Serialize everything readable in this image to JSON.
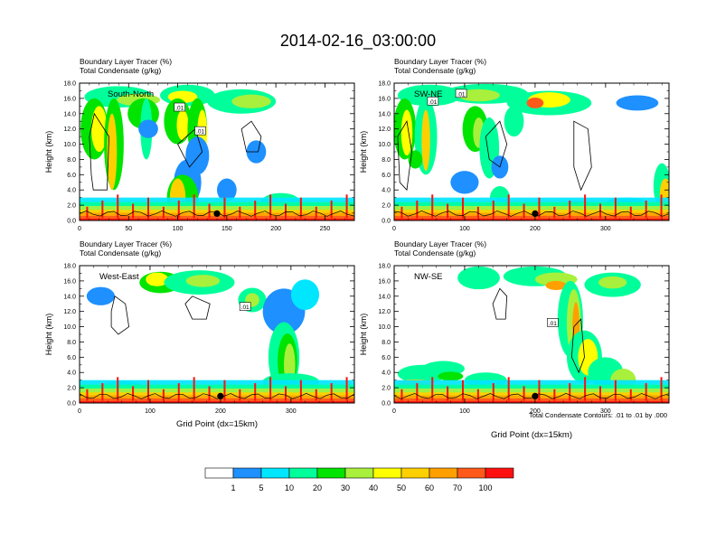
{
  "title": "2014-02-16_03:00:00",
  "colorbar": {
    "colors": [
      "#ffffff",
      "#1e90ff",
      "#00e6ff",
      "#00ff9a",
      "#00e400",
      "#a8f03c",
      "#ffff00",
      "#ffd000",
      "#ffa000",
      "#ff5a1a",
      "#ff1010"
    ],
    "labels": [
      "1",
      "5",
      "10",
      "20",
      "30",
      "40",
      "50",
      "60",
      "70",
      "100"
    ]
  },
  "contour_note": "Total Condensate Contours: .01 to .01 by .000",
  "chart_data": [
    {
      "type": "heatmap",
      "name": "south-north",
      "subtitle_1": "Boundary Layer Tracer   (%)",
      "subtitle_2": "Total Condensate   (g/kg)",
      "panel_label": "South-North",
      "ylabel": "Height (km)",
      "xlabel": "",
      "ylim": [
        0,
        18
      ],
      "xlim": [
        0,
        280
      ],
      "x_ticks": [
        "0",
        "50",
        "100",
        "150",
        "200",
        "250"
      ],
      "y_ticks": [
        "0.0",
        "2.0",
        "4.0",
        "6.0",
        "8.0",
        "10.0",
        "12.0",
        "14.0",
        "16.0",
        "18.0"
      ],
      "contour_labels": [
        ".01",
        ".01"
      ],
      "marker_x": 140
    },
    {
      "type": "heatmap",
      "name": "sw-ne",
      "subtitle_1": "Boundary Layer Tracer   (%)",
      "subtitle_2": "Total Condensate   (g/kg)",
      "panel_label": "SW-NE",
      "ylabel": "Height (km)",
      "xlabel": "",
      "ylim": [
        0,
        18
      ],
      "xlim": [
        0,
        390
      ],
      "x_ticks": [
        "0",
        "100",
        "200",
        "300"
      ],
      "y_ticks": [
        "0.0",
        "2.0",
        "4.0",
        "6.0",
        "8.0",
        "10.0",
        "12.0",
        "14.0",
        "16.0",
        "18.0"
      ],
      "contour_labels": [
        ".01",
        ".01"
      ],
      "marker_x": 200
    },
    {
      "type": "heatmap",
      "name": "west-east",
      "subtitle_1": "Boundary Layer Tracer   (%)",
      "subtitle_2": "Total Condensate   (g/kg)",
      "panel_label": "West-East",
      "ylabel": "Height (km)",
      "xlabel": "Grid Point (dx=15km)",
      "ylim": [
        0,
        18
      ],
      "xlim": [
        0,
        390
      ],
      "x_ticks": [
        "0",
        "100",
        "200",
        "300"
      ],
      "y_ticks": [
        "0.0",
        "2.0",
        "4.0",
        "6.0",
        "8.0",
        "10.0",
        "12.0",
        "14.0",
        "16.0",
        "18.0"
      ],
      "contour_labels": [
        ".01"
      ],
      "marker_x": 200
    },
    {
      "type": "heatmap",
      "name": "nw-se",
      "subtitle_1": "Boundary Layer Tracer   (%)",
      "subtitle_2": "Total Condensate   (g/kg)",
      "panel_label": "NW-SE",
      "ylabel": "Height (km)",
      "xlabel": "Grid Point (dx=15km)",
      "ylim": [
        0,
        18
      ],
      "xlim": [
        0,
        390
      ],
      "x_ticks": [
        "0",
        "100",
        "200",
        "300"
      ],
      "y_ticks": [
        "0.0",
        "2.0",
        "4.0",
        "6.0",
        "8.0",
        "10.0",
        "12.0",
        "14.0",
        "16.0",
        "18.0"
      ],
      "contour_labels": [
        ".01"
      ],
      "marker_x": 200
    }
  ]
}
